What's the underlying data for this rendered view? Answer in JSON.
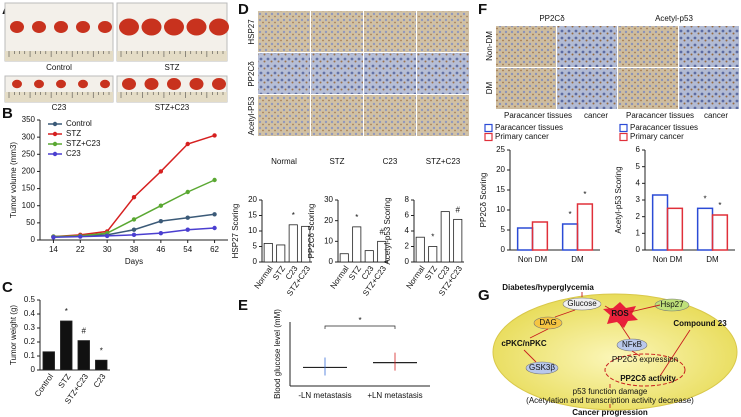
{
  "panel_labels": [
    "A",
    "B",
    "C",
    "D",
    "E",
    "F",
    "G"
  ],
  "panel_a": {
    "captions": [
      "Control",
      "STZ",
      "C23",
      "STZ+C23"
    ]
  },
  "panel_d_images": {
    "rows": [
      "HSP27",
      "PP2Cδ",
      "Acetyl-P53"
    ],
    "columns": [
      "Normal",
      "STZ",
      "C23",
      "STZ+C23"
    ]
  },
  "panel_f_images": {
    "columns": [
      "PP2Cδ",
      "Acetyl-p53"
    ],
    "rows": [
      "Non-DM",
      "DM"
    ],
    "captions": [
      "Paracancer tissues",
      "cancer",
      "Paracancer tissues",
      "cancer"
    ]
  },
  "diagram": {
    "nodes": [
      "Diabetes/hyperglycemia",
      "Glucose",
      "DAG",
      "ROS",
      "Hsp27",
      "Compound 23",
      "cPKC/nPKC",
      "NFκB",
      "GSK3β",
      "PP2Cδ expression",
      "PP2Cδ activity",
      "p53 function damage",
      "(Acetylation and transcription activity decrease)",
      "Cancer progression"
    ]
  },
  "chart_data": [
    {
      "type": "line",
      "ylabel": "Tumor volume (mm3)",
      "xlabel": "Days",
      "x": [
        14,
        22,
        30,
        38,
        46,
        54,
        62
      ],
      "xticks": [
        14,
        22,
        30,
        38,
        46,
        54,
        62
      ],
      "xlim": [
        10,
        66
      ],
      "ylim": [
        0,
        350
      ],
      "yticks": [
        0,
        50,
        100,
        150,
        200,
        250,
        300,
        350
      ],
      "legend": "top-left",
      "series": [
        {
          "name": "Control",
          "color": "#3b5a78",
          "values": [
            10,
            12,
            15,
            30,
            55,
            65,
            75
          ]
        },
        {
          "name": "STZ",
          "color": "#d62020",
          "values": [
            10,
            15,
            25,
            125,
            200,
            280,
            305
          ]
        },
        {
          "name": "STZ+C23",
          "color": "#5aa832",
          "values": [
            10,
            12,
            20,
            60,
            100,
            140,
            175
          ]
        },
        {
          "name": "C23",
          "color": "#4b3fd0",
          "values": [
            8,
            10,
            12,
            15,
            20,
            30,
            35
          ]
        }
      ]
    },
    {
      "type": "bar",
      "ylabel": "Tumor weight (g)",
      "categories": [
        "Control",
        "STZ",
        "STZ+C23",
        "C23"
      ],
      "values": [
        0.13,
        0.35,
        0.21,
        0.07
      ],
      "significance": [
        null,
        "*",
        "#",
        "*"
      ],
      "color": "#111111",
      "ylim": [
        0,
        0.5
      ],
      "yticks": [
        0,
        0.1,
        0.2,
        0.3,
        0.4,
        0.5
      ],
      "rotate_labels": true
    },
    {
      "type": "bar",
      "ylabel": "HSP27 Scoring",
      "categories": [
        "Normal",
        "STZ",
        "C23",
        "STZ+C23"
      ],
      "values": [
        6,
        5.5,
        12,
        11.5
      ],
      "significance": [
        null,
        null,
        "*",
        null
      ],
      "color": "#ffffff",
      "ylim": [
        0,
        20
      ],
      "yticks": [
        0,
        5,
        10,
        15,
        20
      ],
      "rotate_labels": true
    },
    {
      "type": "bar",
      "ylabel": "PP2Cδ Scoring",
      "categories": [
        "Normal",
        "STZ",
        "C23",
        "STZ+C23"
      ],
      "values": [
        4,
        17,
        5.5,
        10
      ],
      "significance": [
        null,
        "*",
        null,
        "#"
      ],
      "color": "#ffffff",
      "ylim": [
        0,
        30
      ],
      "yticks": [
        0,
        10,
        20,
        30
      ],
      "rotate_labels": true
    },
    {
      "type": "bar",
      "ylabel": "Acetyl-p53 Scoring",
      "categories": [
        "Normal",
        "STZ",
        "C23",
        "STZ+C23"
      ],
      "values": [
        3.2,
        2,
        6.5,
        5.5
      ],
      "significance": [
        null,
        "*",
        null,
        "#"
      ],
      "color": "#ffffff",
      "ylim": [
        0,
        8
      ],
      "yticks": [
        0,
        2,
        4,
        6,
        8
      ],
      "rotate_labels": true
    },
    {
      "type": "dot",
      "ylabel": "Blood glucose level (mM)",
      "categories": [
        "-LN metastasis",
        "+LN metastasis"
      ],
      "values": [
        5.8,
        7.3
      ],
      "colors": [
        "#3a6fd8",
        "#d62020"
      ],
      "significance": "*",
      "ylim": [
        0,
        20
      ]
    },
    {
      "type": "bar",
      "ylabel": "PP2Cδ Scoring",
      "categories": [
        "Non DM",
        "DM"
      ],
      "ylim": [
        0,
        25
      ],
      "yticks": [
        0,
        5,
        10,
        15,
        20,
        25
      ],
      "series": [
        {
          "name": "Paracancer tissues",
          "color": "#2b4bd6",
          "values": [
            5.5,
            6.5
          ],
          "significance": [
            null,
            "*"
          ]
        },
        {
          "name": "Primary cancer",
          "color": "#e0303a",
          "values": [
            7,
            11.5
          ],
          "significance": [
            null,
            "*"
          ]
        }
      ]
    },
    {
      "type": "bar",
      "ylabel": "Acetyl-p53 Scoring",
      "categories": [
        "Non DM",
        "DM"
      ],
      "ylim": [
        0,
        6
      ],
      "yticks": [
        0,
        1,
        2,
        3,
        4,
        5,
        6
      ],
      "series": [
        {
          "name": "Paracancer tissues",
          "color": "#2b4bd6",
          "values": [
            3.3,
            2.5
          ],
          "significance": [
            null,
            "*"
          ]
        },
        {
          "name": "Primary cancer",
          "color": "#e0303a",
          "values": [
            2.5,
            2.1
          ],
          "significance": [
            null,
            "*"
          ]
        }
      ]
    }
  ]
}
